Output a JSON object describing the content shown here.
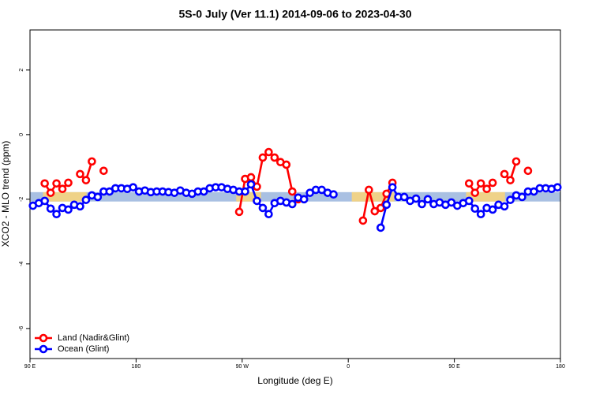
{
  "chart_data": {
    "type": "line",
    "title": "5S-0 July (Ver 11.1)   2014-09-06 to 2023-04-30",
    "x_label": "Longitude (deg E)",
    "y_label": "XCO2 - MLO trend (ppm)",
    "xlim": [
      90,
      540
    ],
    "xticks": [
      {
        "value": 90,
        "label": "90 E"
      },
      180,
      {
        "value": 270,
        "label": "90 W"
      },
      {
        "value": 360,
        "label": "0"
      },
      {
        "value": 450,
        "label": "90 E"
      },
      {
        "value": 540,
        "label": "180"
      }
    ],
    "ylim": [
      -6.93,
      3.24
    ],
    "yticks": [
      -6,
      -4,
      -2,
      0,
      2
    ],
    "legend": "bottom-left",
    "band": {
      "ylim": [
        -2.07,
        -1.78
      ],
      "color": "#a9c0e2"
    },
    "band_highlights": {
      "color": "#f6d47e",
      "ranges": [
        [
          101,
          138
        ],
        [
          265,
          286
        ],
        [
          363,
          399
        ],
        [
          460,
          493
        ]
      ]
    },
    "x": [
      92.5,
      97.5,
      102.5,
      107.5,
      112.5,
      117.5,
      122.5,
      127.5,
      132.5,
      137.5,
      142.5,
      147.5,
      152.5,
      157.5,
      162.5,
      167.5,
      172.5,
      177.5,
      182.5,
      187.5,
      192.5,
      197.5,
      202.5,
      207.5,
      212.5,
      217.5,
      222.5,
      227.5,
      232.5,
      237.5,
      242.5,
      247.5,
      252.5,
      257.5,
      262.5,
      267.5,
      272.5,
      277.5,
      282.5,
      287.5,
      292.5,
      297.5,
      302.5,
      307.5,
      312.5,
      317.5,
      322.5,
      327.5,
      332.5,
      337.5,
      342.5,
      347.5,
      352.5,
      357.5,
      362.5,
      367.5,
      372.5,
      377.5,
      382.5,
      387.5,
      392.5,
      397.5,
      402.5,
      407.5,
      412.5,
      417.5,
      422.5,
      427.5,
      432.5,
      437.5,
      442.5,
      447.5,
      452.5,
      457.5,
      462.5,
      467.5,
      472.5,
      477.5,
      482.5,
      487.5,
      492.5,
      497.5,
      502.5,
      507.5,
      512.5,
      517.5,
      522.5,
      527.5,
      532.5,
      537.5
    ],
    "series": [
      {
        "name": "Land (Nadir&Glint)",
        "color": "#ff0000",
        "values": [
          null,
          null,
          -1.51,
          -1.8,
          -1.51,
          -1.68,
          -1.49,
          null,
          -1.22,
          -1.41,
          -0.83,
          null,
          -1.12,
          null,
          null,
          null,
          null,
          null,
          null,
          null,
          null,
          null,
          null,
          null,
          null,
          null,
          null,
          null,
          null,
          null,
          null,
          null,
          null,
          null,
          null,
          -2.39,
          -1.37,
          -1.32,
          -1.61,
          -0.71,
          -0.54,
          -0.71,
          -0.85,
          -0.93,
          -1.76,
          -2.0,
          null,
          null,
          null,
          null,
          null,
          null,
          null,
          null,
          null,
          null,
          -2.66,
          -1.71,
          -2.37,
          -2.27,
          -1.83,
          -1.49,
          null,
          null,
          null,
          null,
          null,
          null,
          null,
          null,
          null,
          null,
          null,
          null,
          -1.51,
          -1.8,
          -1.51,
          -1.68,
          -1.49,
          null,
          -1.22,
          -1.41,
          -0.83,
          null,
          -1.12,
          null,
          null,
          null,
          null,
          null
        ]
      },
      {
        "name": "Ocean (Glint)",
        "color": "#0000ff",
        "values": [
          -2.2,
          -2.12,
          -2.05,
          -2.29,
          -2.46,
          -2.27,
          -2.32,
          -2.17,
          -2.22,
          -2.02,
          -1.88,
          -1.93,
          -1.76,
          -1.76,
          -1.66,
          -1.66,
          -1.68,
          -1.63,
          -1.76,
          -1.73,
          -1.78,
          -1.76,
          -1.76,
          -1.78,
          -1.8,
          -1.73,
          -1.8,
          -1.83,
          -1.76,
          -1.76,
          -1.66,
          -1.63,
          -1.63,
          -1.68,
          -1.71,
          -1.76,
          -1.76,
          -1.54,
          -2.05,
          -2.27,
          -2.46,
          -2.12,
          -2.05,
          -2.1,
          -2.15,
          -1.95,
          -2.0,
          -1.8,
          -1.71,
          -1.71,
          -1.8,
          -1.85,
          null,
          null,
          null,
          null,
          null,
          null,
          null,
          -2.88,
          -2.17,
          -1.63,
          -1.93,
          -1.93,
          -2.05,
          -1.98,
          -2.15,
          -2.0,
          -2.15,
          -2.1,
          -2.17,
          -2.1,
          -2.2,
          -2.12,
          -2.05,
          -2.29,
          -2.46,
          -2.27,
          -2.32,
          -2.17,
          -2.22,
          -2.02,
          -1.88,
          -1.93,
          -1.76,
          -1.76,
          -1.66,
          -1.66,
          -1.68,
          -1.63
        ]
      }
    ]
  }
}
